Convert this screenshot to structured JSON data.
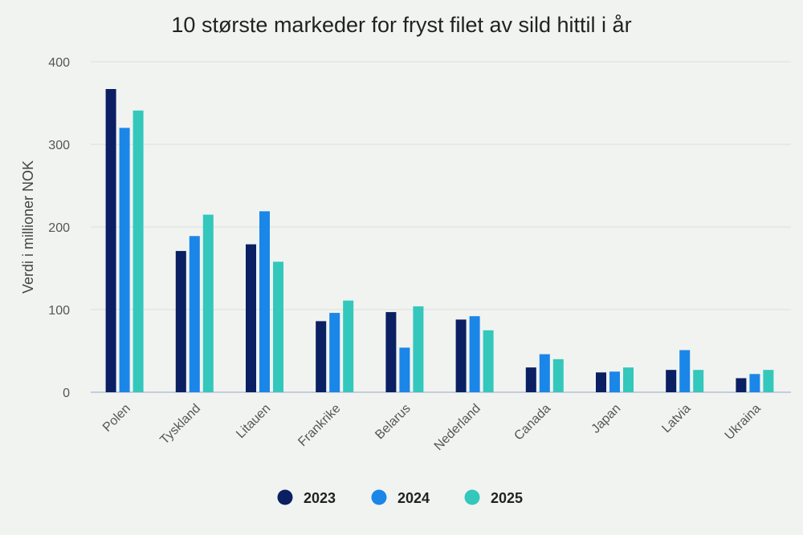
{
  "chart_data": {
    "type": "bar",
    "title": "10 største markeder for fryst filet av sild hittil i år",
    "xlabel": "",
    "ylabel": "Verdi i millioner NOK",
    "ylim": [
      0,
      400
    ],
    "yticks": [
      0,
      100,
      200,
      300,
      400
    ],
    "grid": true,
    "legend_position": "bottom",
    "categories": [
      "Polen",
      "Tyskland",
      "Litauen",
      "Frankrike",
      "Belarus",
      "Nederland",
      "Canada",
      "Japan",
      "Latvia",
      "Ukraina"
    ],
    "series": [
      {
        "name": "2023",
        "color": "#0b1f63",
        "values": [
          367,
          171,
          179,
          86,
          97,
          88,
          30,
          24,
          27,
          17
        ]
      },
      {
        "name": "2024",
        "color": "#1a86e8",
        "values": [
          320,
          189,
          219,
          96,
          54,
          92,
          46,
          25,
          51,
          22
        ]
      },
      {
        "name": "2025",
        "color": "#34c7bc",
        "values": [
          341,
          215,
          158,
          111,
          104,
          75,
          40,
          30,
          27,
          27
        ]
      }
    ]
  }
}
